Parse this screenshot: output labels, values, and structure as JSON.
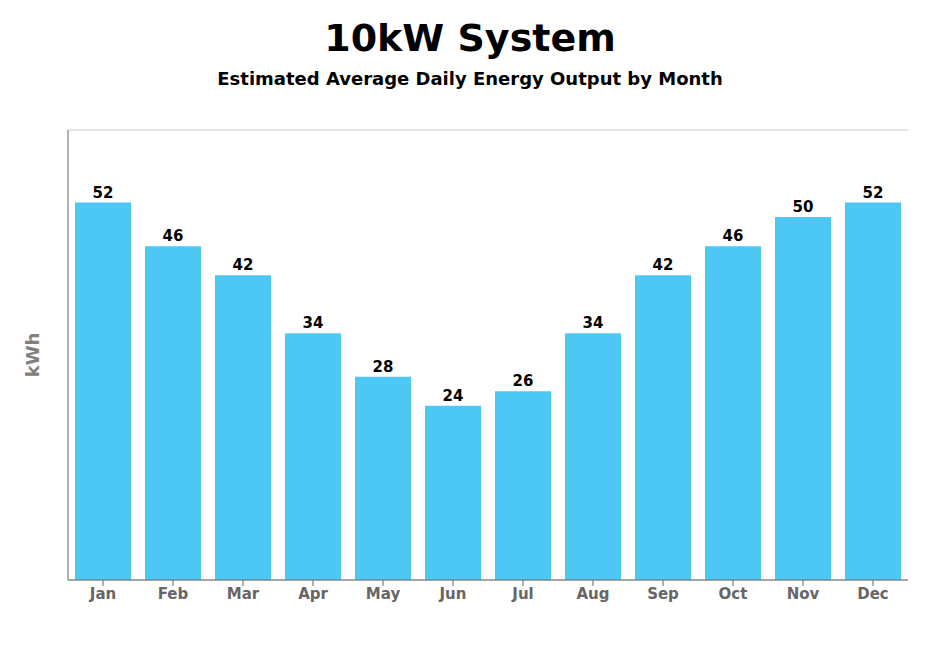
{
  "chart_data": {
    "type": "bar",
    "title": "10kW System",
    "subtitle": "Estimated Average Daily Energy Output by Month",
    "ylabel": "kWh",
    "categories": [
      "Jan",
      "Feb",
      "Mar",
      "Apr",
      "May",
      "Jun",
      "Jul",
      "Aug",
      "Sep",
      "Oct",
      "Nov",
      "Dec"
    ],
    "values": [
      52,
      46,
      42,
      34,
      28,
      24,
      26,
      34,
      42,
      46,
      50,
      52
    ],
    "color": "#4DC8F5",
    "ylim": [
      0,
      62
    ],
    "yticks": [
      42
    ],
    "grid": true,
    "data_labels": true,
    "tick_labels": "x"
  }
}
